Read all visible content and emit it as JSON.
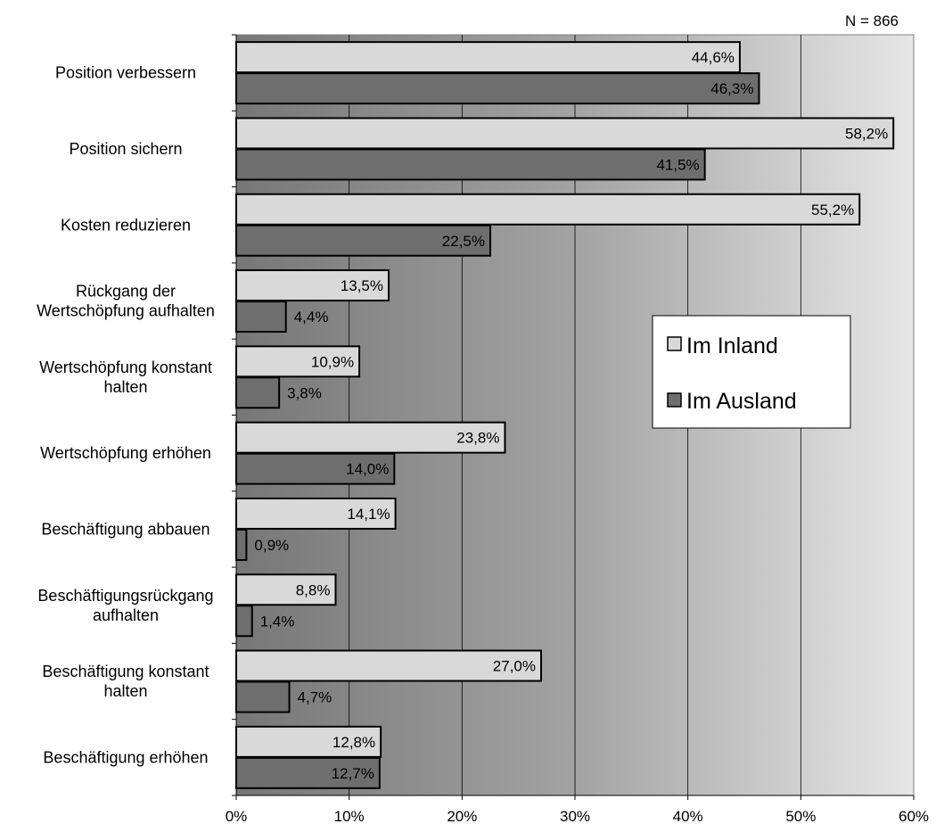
{
  "chart_data": {
    "type": "bar",
    "orientation": "horizontal",
    "note": "N = 866",
    "categories": [
      [
        "Position verbessern"
      ],
      [
        "Position sichern"
      ],
      [
        "Kosten reduzieren"
      ],
      [
        "Rückgang der",
        "Wertschöpfung aufhalten"
      ],
      [
        "Wertschöpfung konstant",
        "halten"
      ],
      [
        "Wertschöpfung erhöhen"
      ],
      [
        "Beschäftigung abbauen"
      ],
      [
        "Beschäftigungsrückgang",
        "aufhalten"
      ],
      [
        "Beschäftigung konstant",
        "halten"
      ],
      [
        "Beschäftigung erhöhen"
      ]
    ],
    "series": [
      {
        "name": "Im Inland",
        "color": "#d9d9d9",
        "values": [
          44.6,
          58.2,
          55.2,
          13.5,
          10.9,
          23.8,
          14.1,
          8.8,
          27.0,
          12.8
        ],
        "labels": [
          "44,6%",
          "58,2%",
          "55,2%",
          "13,5%",
          "10,9%",
          "23,8%",
          "14,1%",
          "8,8%",
          "27,0%",
          "12,8%"
        ]
      },
      {
        "name": "Im Ausland",
        "color": "#6e6e6e",
        "values": [
          46.3,
          41.5,
          22.5,
          4.4,
          3.8,
          14.0,
          0.9,
          1.4,
          4.7,
          12.7
        ],
        "labels": [
          "46,3%",
          "41,5%",
          "22,5%",
          "4,4%",
          "3,8%",
          "14,0%",
          "0,9%",
          "1,4%",
          "4,7%",
          "12,7%"
        ]
      }
    ],
    "xlim": [
      0,
      60
    ],
    "xticks": [
      0,
      10,
      20,
      30,
      40,
      50,
      60
    ],
    "xtick_labels": [
      "0%",
      "10%",
      "20%",
      "30%",
      "40%",
      "50%",
      "60%"
    ],
    "grid": true,
    "legend_position": "right-middle"
  }
}
